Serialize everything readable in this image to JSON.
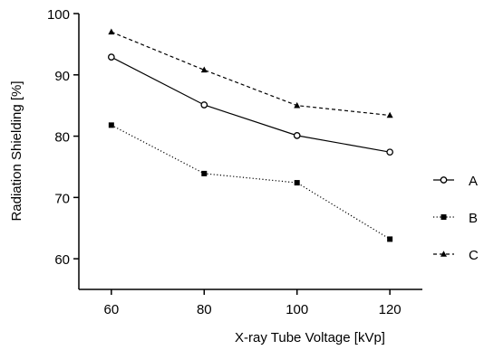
{
  "chart_data": {
    "type": "line",
    "title": "",
    "xlabel": "X-ray Tube Voltage [kVp]",
    "ylabel": "Radiation Shielding [%]",
    "x": [
      60,
      80,
      100,
      120
    ],
    "xticks": [
      "60",
      "80",
      "100",
      "120"
    ],
    "yticks": [
      "60",
      "70",
      "80",
      "90",
      "100"
    ],
    "xlim": [
      53,
      127
    ],
    "ylim": [
      55,
      100
    ],
    "grid": false,
    "legend_position": "right",
    "series": [
      {
        "name": "A",
        "values": [
          92.9,
          85.1,
          80.1,
          77.4
        ],
        "line": "solid",
        "marker": "open-circle"
      },
      {
        "name": "B",
        "values": [
          81.8,
          73.9,
          72.4,
          63.2
        ],
        "line": "dotted",
        "marker": "filled-square"
      },
      {
        "name": "C",
        "values": [
          97.0,
          90.8,
          85.0,
          83.4
        ],
        "line": "dashed",
        "marker": "filled-triangle"
      }
    ]
  }
}
